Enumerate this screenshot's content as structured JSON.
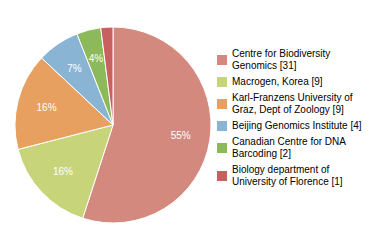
{
  "chart_data": {
    "type": "pie",
    "categories": [
      "Centre for Biodiversity\nGenomics [31]",
      "Macrogen, Korea [9]",
      "Karl-Franzens University of\nGraz, Dept of Zoology [9]",
      "Beijing Genomics Institute [4]",
      "Canadian Centre for DNA\nBarcoding [2]",
      "Biology department of\nUniversity of Florence [1]"
    ],
    "values": [
      55,
      16,
      16,
      7,
      4,
      2
    ],
    "value_labels": [
      "55%",
      "16%",
      "16%",
      "7%",
      "4%",
      null
    ],
    "colors": [
      "#d4897f",
      "#c8d47a",
      "#e8a060",
      "#8ab4d4",
      "#8cba5a",
      "#c86060"
    ],
    "data_labels": true,
    "legend": "right"
  }
}
